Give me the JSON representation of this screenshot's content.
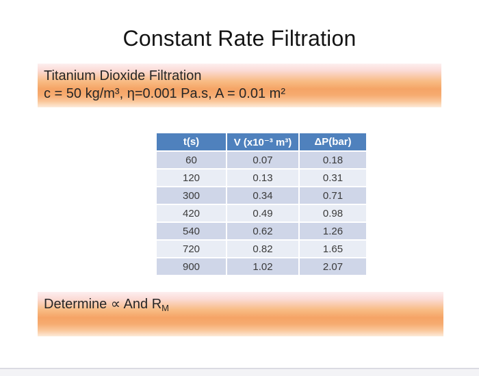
{
  "slide": {
    "title": "Constant Rate Filtration"
  },
  "info_banner": {
    "line1": "Titanium Dioxide Filtration",
    "line2": "c = 50 kg/m³, η=0.001 Pa.s, A = 0.01 m²"
  },
  "table": {
    "headers": [
      "t(s)",
      "V (x10⁻³ m³)",
      "ΔP(bar)"
    ],
    "rows": [
      {
        "t": "60",
        "v": "0.07",
        "dp": "0.18"
      },
      {
        "t": "120",
        "v": "0.13",
        "dp": "0.31"
      },
      {
        "t": "300",
        "v": "0.34",
        "dp": "0.71"
      },
      {
        "t": "420",
        "v": "0.49",
        "dp": "0.98"
      },
      {
        "t": "540",
        "v": "0.62",
        "dp": "1.26"
      },
      {
        "t": "720",
        "v": "0.82",
        "dp": "1.65"
      },
      {
        "t": "900",
        "v": "1.02",
        "dp": "2.07"
      }
    ]
  },
  "task_banner": {
    "text": "Determine ∝ And R",
    "subscript": "M"
  },
  "colors": {
    "header-blue": "#4F81BD",
    "row-dark": "#CFD6E8",
    "row-light": "#E9EDF5",
    "banner-top": "#FDEFEF",
    "banner-mid": "#F5A466",
    "banner-bottom": "#FDEBDA"
  }
}
